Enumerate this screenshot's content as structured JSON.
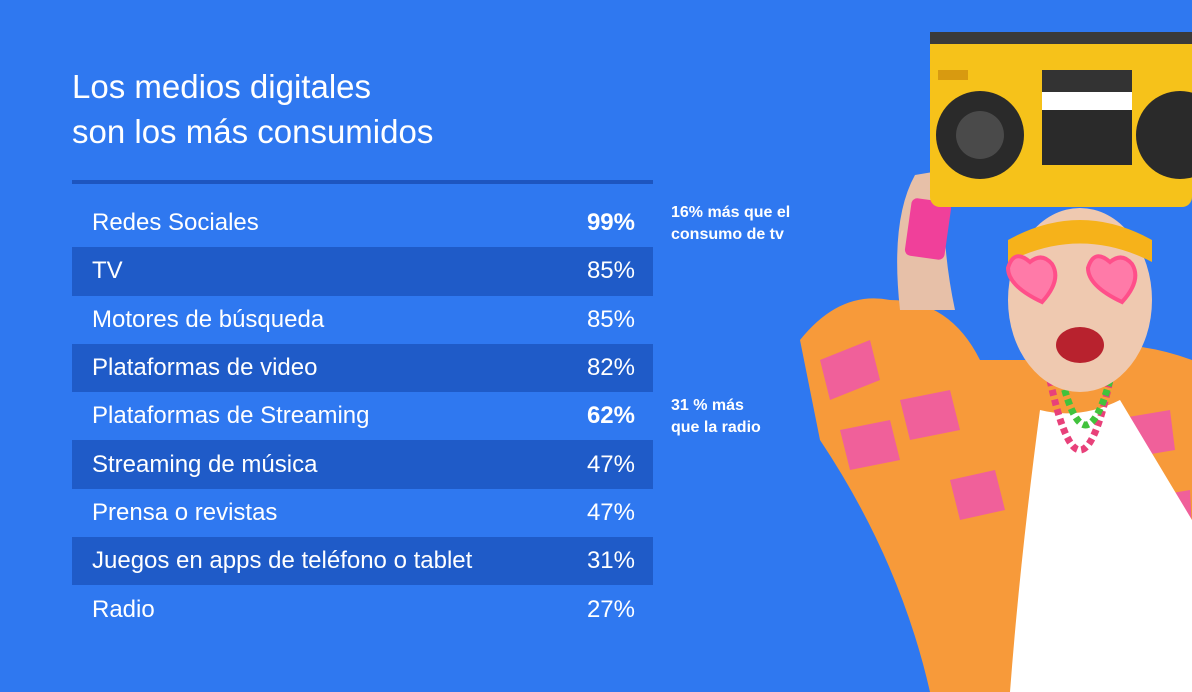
{
  "title": {
    "line1": "Los medios digitales",
    "line2": "son los más consumidos"
  },
  "rows": [
    {
      "label": "Redes Sociales",
      "value": "99%"
    },
    {
      "label": "TV",
      "value": "85%"
    },
    {
      "label": "Motores de búsqueda",
      "value": "85%"
    },
    {
      "label": "Plataformas de video",
      "value": "82%"
    },
    {
      "label": "Plataformas de Streaming",
      "value": "62%"
    },
    {
      "label": "Streaming de música",
      "value": "47%"
    },
    {
      "label": "Prensa o revistas",
      "value": "47%"
    },
    {
      "label": "Juegos en apps de teléfono o tablet",
      "value": "31%"
    },
    {
      "label": "Radio",
      "value": "27%"
    }
  ],
  "notes": {
    "note1": {
      "line1": "16% más que el",
      "line2": "consumo de tv"
    },
    "note2": {
      "line1": "31 % más",
      "line2": "que la radio"
    }
  },
  "colors": {
    "background": "#2f78f0",
    "row_shade": "#1f5bc8",
    "boombox": "#f6c21a",
    "jacket": "#f79a3a"
  }
}
